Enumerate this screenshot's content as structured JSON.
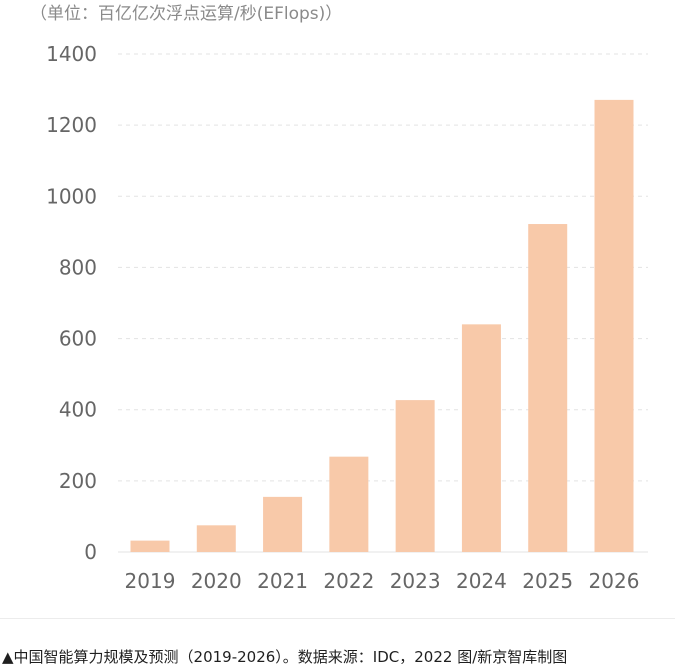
{
  "chart_data": {
    "type": "bar",
    "title": "",
    "unit_label": "（单位：百亿亿次浮点运算/秒(EFlops)）",
    "categories": [
      "2019",
      "2020",
      "2021",
      "2022",
      "2023",
      "2024",
      "2025",
      "2026"
    ],
    "values": [
      32,
      75,
      155,
      268,
      427,
      640,
      922,
      1271
    ],
    "xlabel": "",
    "ylabel": "",
    "ylim": [
      0,
      1400
    ],
    "yticks": [
      0,
      200,
      400,
      600,
      800,
      1000,
      1200,
      1400
    ],
    "grid": true,
    "legend": "none"
  },
  "colors": {
    "bar": "#f8c9a9",
    "grid": "#e3e3e3",
    "axis_text": "#666666",
    "unit_text": "#8a8a8a",
    "caption_text": "#1f1f1f"
  },
  "caption": "▲中国智能算力规模及预测（2019-2026）。数据来源：IDC，2022 图/新京智库制图"
}
